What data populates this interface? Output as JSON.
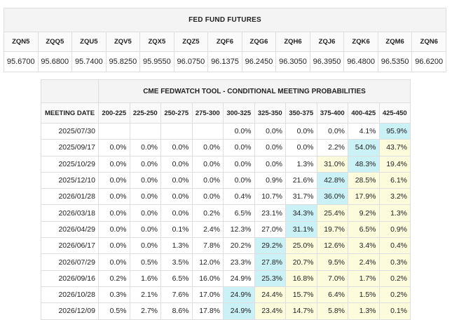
{
  "fed_fund_futures": {
    "title": "FED FUND FUTURES",
    "contracts": [
      {
        "code": "ZQN5",
        "price": "95.6700"
      },
      {
        "code": "ZQQ5",
        "price": "95.6800"
      },
      {
        "code": "ZQU5",
        "price": "95.7400"
      },
      {
        "code": "ZQV5",
        "price": "95.8250"
      },
      {
        "code": "ZQX5",
        "price": "95.9550"
      },
      {
        "code": "ZQZ5",
        "price": "96.0750"
      },
      {
        "code": "ZQF6",
        "price": "96.1375"
      },
      {
        "code": "ZQG6",
        "price": "96.2450"
      },
      {
        "code": "ZQH6",
        "price": "96.3050"
      },
      {
        "code": "ZQJ6",
        "price": "96.3950"
      },
      {
        "code": "ZQK6",
        "price": "96.4800"
      },
      {
        "code": "ZQM6",
        "price": "96.5350"
      },
      {
        "code": "ZQN6",
        "price": "96.6200"
      }
    ]
  },
  "fedwatch": {
    "title": "CME FEDWATCH TOOL - CONDITIONAL MEETING PROBABILITIES",
    "date_header": "MEETING DATE",
    "columns": [
      "200-225",
      "225-250",
      "250-275",
      "275-300",
      "300-325",
      "325-350",
      "350-375",
      "375-400",
      "400-425",
      "425-450"
    ],
    "highlight_colors": {
      "yellow": "#fcfcdc",
      "cyan": "#c9f1f6"
    },
    "rows": [
      {
        "date": "2025/07/30",
        "values": [
          "",
          "",
          "",
          "",
          "0.0%",
          "0.0%",
          "0.0%",
          "0.0%",
          "4.1%",
          "95.9%"
        ],
        "highlight_from": 9,
        "cyan_index": 9
      },
      {
        "date": "2025/09/17",
        "values": [
          "0.0%",
          "0.0%",
          "0.0%",
          "0.0%",
          "0.0%",
          "0.0%",
          "0.0%",
          "2.2%",
          "54.0%",
          "43.7%"
        ],
        "highlight_from": 8,
        "cyan_index": 8
      },
      {
        "date": "2025/10/29",
        "values": [
          "0.0%",
          "0.0%",
          "0.0%",
          "0.0%",
          "0.0%",
          "0.0%",
          "1.3%",
          "31.0%",
          "48.3%",
          "19.4%"
        ],
        "highlight_from": 7,
        "cyan_index": 8
      },
      {
        "date": "2025/12/10",
        "values": [
          "0.0%",
          "0.0%",
          "0.0%",
          "0.0%",
          "0.0%",
          "0.9%",
          "21.6%",
          "42.8%",
          "28.5%",
          "6.1%"
        ],
        "highlight_from": 7,
        "cyan_index": 7
      },
      {
        "date": "2026/01/28",
        "values": [
          "0.0%",
          "0.0%",
          "0.0%",
          "0.0%",
          "0.4%",
          "10.7%",
          "31.7%",
          "36.0%",
          "17.9%",
          "3.2%"
        ],
        "highlight_from": 7,
        "cyan_index": 7
      },
      {
        "date": "2026/03/18",
        "values": [
          "0.0%",
          "0.0%",
          "0.0%",
          "0.2%",
          "6.5%",
          "23.1%",
          "34.3%",
          "25.4%",
          "9.2%",
          "1.3%"
        ],
        "highlight_from": 6,
        "cyan_index": 6
      },
      {
        "date": "2026/04/29",
        "values": [
          "0.0%",
          "0.0%",
          "0.1%",
          "2.4%",
          "12.3%",
          "27.0%",
          "31.1%",
          "19.7%",
          "6.5%",
          "0.9%"
        ],
        "highlight_from": 6,
        "cyan_index": 6
      },
      {
        "date": "2026/06/17",
        "values": [
          "0.0%",
          "0.0%",
          "1.3%",
          "7.8%",
          "20.2%",
          "29.2%",
          "25.0%",
          "12.6%",
          "3.4%",
          "0.4%"
        ],
        "highlight_from": 5,
        "cyan_index": 5
      },
      {
        "date": "2026/07/29",
        "values": [
          "0.0%",
          "0.5%",
          "3.5%",
          "12.0%",
          "23.3%",
          "27.8%",
          "20.7%",
          "9.5%",
          "2.4%",
          "0.3%"
        ],
        "highlight_from": 5,
        "cyan_index": 5
      },
      {
        "date": "2026/09/16",
        "values": [
          "0.2%",
          "1.6%",
          "6.5%",
          "16.0%",
          "24.9%",
          "25.3%",
          "16.8%",
          "7.0%",
          "1.7%",
          "0.2%"
        ],
        "highlight_from": 5,
        "cyan_index": 5
      },
      {
        "date": "2026/10/28",
        "values": [
          "0.3%",
          "2.1%",
          "7.6%",
          "17.0%",
          "24.9%",
          "24.4%",
          "15.7%",
          "6.4%",
          "1.5%",
          "0.2%"
        ],
        "highlight_from": 4,
        "cyan_index": 4
      },
      {
        "date": "2026/12/09",
        "values": [
          "0.5%",
          "2.7%",
          "8.6%",
          "17.8%",
          "24.9%",
          "23.4%",
          "14.7%",
          "5.8%",
          "1.3%",
          "0.1%"
        ],
        "highlight_from": 4,
        "cyan_index": 4
      }
    ]
  }
}
